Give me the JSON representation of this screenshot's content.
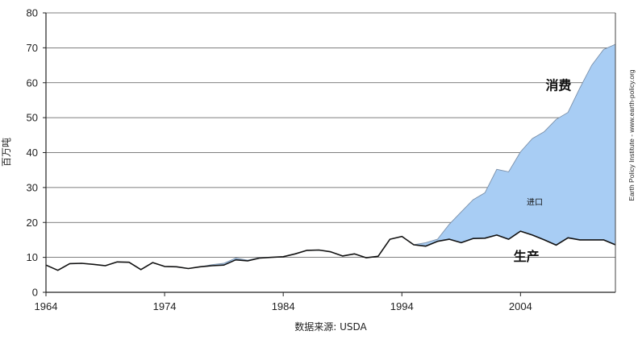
{
  "chart_data": {
    "type": "area",
    "xlabel": "数据来源: USDA",
    "ylabel": "百万吨",
    "credit": "Earth Policy Institute - www.earth-policy.org",
    "xlim": [
      1964,
      2012
    ],
    "ylim": [
      0,
      80
    ],
    "yticks": [
      0,
      10,
      20,
      30,
      40,
      50,
      60,
      70,
      80
    ],
    "xticks": [
      1964,
      1974,
      1984,
      1994,
      2004
    ],
    "grid": true,
    "colors": {
      "fill": "#a8cdf4",
      "line": "#111111",
      "grid": "#555555"
    },
    "x": [
      1964,
      1965,
      1966,
      1967,
      1968,
      1969,
      1970,
      1971,
      1972,
      1973,
      1974,
      1975,
      1976,
      1977,
      1978,
      1979,
      1980,
      1981,
      1982,
      1983,
      1984,
      1985,
      1986,
      1987,
      1988,
      1989,
      1990,
      1991,
      1992,
      1993,
      1994,
      1995,
      1996,
      1997,
      1998,
      1999,
      2000,
      2001,
      2002,
      2003,
      2004,
      2005,
      2006,
      2007,
      2008,
      2009,
      2010,
      2011,
      2012
    ],
    "series": [
      {
        "name": "消费",
        "values": [
          7.8,
          6.3,
          8.2,
          8.3,
          8.0,
          7.6,
          8.7,
          8.6,
          6.5,
          8.5,
          7.4,
          7.3,
          6.8,
          7.3,
          7.9,
          8.3,
          9.8,
          9.2,
          9.9,
          10.0,
          10.2,
          11.0,
          12.0,
          12.1,
          11.6,
          10.4,
          11.0,
          9.9,
          10.3,
          15.2,
          16.0,
          13.6,
          14.2,
          15.2,
          19.5,
          23.0,
          26.5,
          28.5,
          35.2,
          34.5,
          40.2,
          44.0,
          46.0,
          49.5,
          51.5,
          58.5,
          65.0,
          69.5,
          71.0
        ]
      },
      {
        "name": "生产",
        "values": [
          7.8,
          6.3,
          8.2,
          8.3,
          8.0,
          7.6,
          8.7,
          8.6,
          6.5,
          8.5,
          7.4,
          7.3,
          6.8,
          7.3,
          7.6,
          7.8,
          9.3,
          9.0,
          9.8,
          10.0,
          10.2,
          11.0,
          12.0,
          12.1,
          11.6,
          10.4,
          11.0,
          9.9,
          10.3,
          15.2,
          16.0,
          13.6,
          13.2,
          14.6,
          15.2,
          14.2,
          15.4,
          15.5,
          16.4,
          15.2,
          17.5,
          16.4,
          15.0,
          13.5,
          15.6,
          15.0,
          15.0,
          15.0,
          13.6
        ]
      }
    ],
    "annotations": [
      {
        "text": "消费",
        "x": 2007.2,
        "y": 58
      },
      {
        "text": "进口",
        "x": 2005.2,
        "y": 25
      },
      {
        "text": "生产",
        "x": 2004.5,
        "y": 9
      }
    ]
  }
}
